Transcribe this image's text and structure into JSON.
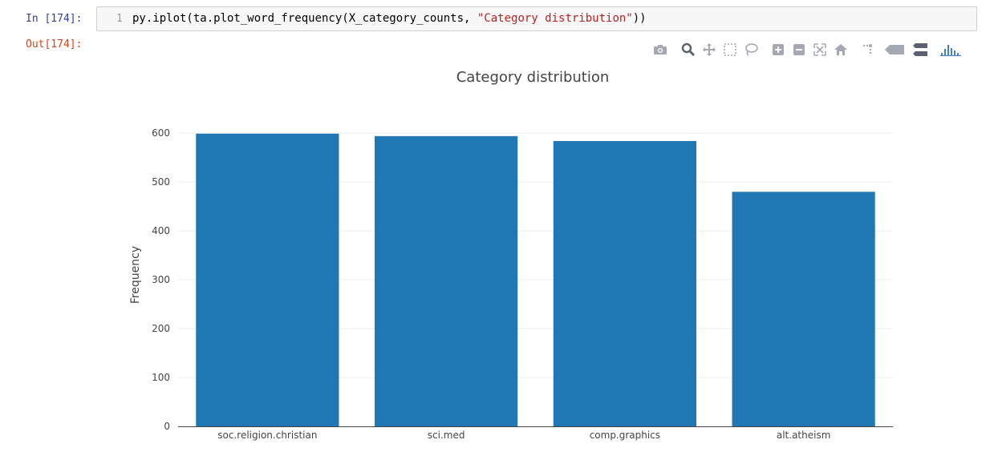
{
  "notebook": {
    "in_prompt": "In [174]:",
    "out_prompt": "Out[174]:",
    "line_number": "1",
    "code_before": "py.iplot(ta.plot_word_frequency(X_category_counts, ",
    "code_string": "\"Category distribution\"",
    "code_after": "))"
  },
  "modebar": {
    "icons": [
      "camera-icon",
      "zoom-icon",
      "pan-icon",
      "box-select-icon",
      "lasso-icon",
      "zoom-in-icon",
      "zoom-out-icon",
      "autoscale-icon",
      "home-icon",
      "spike-lines-icon",
      "hover-closest-icon",
      "hover-compare-icon",
      "plotly-logo-icon"
    ],
    "icon_color": "#a3a8b3",
    "logo_color": "#3f7fd6"
  },
  "chart_data": {
    "type": "bar",
    "title": "Category distribution",
    "xlabel": "",
    "ylabel": "Frequency",
    "categories": [
      "soc.religion.christian",
      "sci.med",
      "comp.graphics",
      "alt.atheism"
    ],
    "values": [
      599,
      594,
      584,
      480
    ],
    "ylim": [
      0,
      620
    ],
    "yticks": [
      "0",
      "100",
      "200",
      "300",
      "400",
      "500",
      "600"
    ],
    "grid": true,
    "bar_color": "#1f77b4"
  }
}
